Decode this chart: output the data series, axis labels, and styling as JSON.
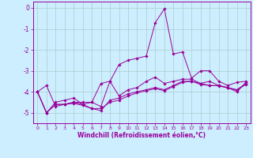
{
  "xlabel": "Windchill (Refroidissement éolien,°C)",
  "bg_color": "#cceeff",
  "grid_color": "#aacccc",
  "line_color": "#990099",
  "x_ticks": [
    0,
    1,
    2,
    3,
    4,
    5,
    6,
    7,
    8,
    9,
    10,
    11,
    12,
    13,
    14,
    15,
    16,
    17,
    18,
    19,
    20,
    21,
    22,
    23
  ],
  "ylim": [
    -5.5,
    0.3
  ],
  "y_ticks": [
    0,
    -1,
    -2,
    -3,
    -4,
    -5
  ],
  "series": [
    [
      -4.0,
      -3.7,
      -4.7,
      -4.6,
      -4.5,
      -4.5,
      -4.5,
      -3.6,
      -3.5,
      -2.7,
      -2.5,
      -2.4,
      -2.3,
      -0.7,
      -0.05,
      -2.2,
      -2.1,
      -3.35,
      -3.0,
      -3.0,
      -3.5,
      -3.7,
      -3.55,
      -3.5
    ],
    [
      -4.0,
      -5.0,
      -4.5,
      -4.4,
      -4.3,
      -4.6,
      -4.5,
      -4.7,
      -3.5,
      -4.2,
      -3.9,
      -3.8,
      -3.5,
      -3.3,
      -3.6,
      -3.5,
      -3.4,
      -3.4,
      -3.6,
      -3.5,
      -3.7,
      -3.8,
      -4.0,
      -3.55
    ],
    [
      -4.0,
      -5.0,
      -4.6,
      -4.6,
      -4.5,
      -4.6,
      -4.8,
      -4.9,
      -4.4,
      -4.3,
      -4.1,
      -4.0,
      -3.9,
      -3.8,
      -3.9,
      -3.7,
      -3.5,
      -3.5,
      -3.6,
      -3.7,
      -3.7,
      -3.8,
      -3.9,
      -3.6
    ],
    [
      -4.0,
      -5.0,
      -4.6,
      -4.6,
      -4.55,
      -4.65,
      -4.8,
      -4.8,
      -4.5,
      -4.4,
      -4.2,
      -4.05,
      -3.95,
      -3.85,
      -3.95,
      -3.75,
      -3.55,
      -3.5,
      -3.65,
      -3.7,
      -3.72,
      -3.82,
      -3.92,
      -3.65
    ]
  ]
}
